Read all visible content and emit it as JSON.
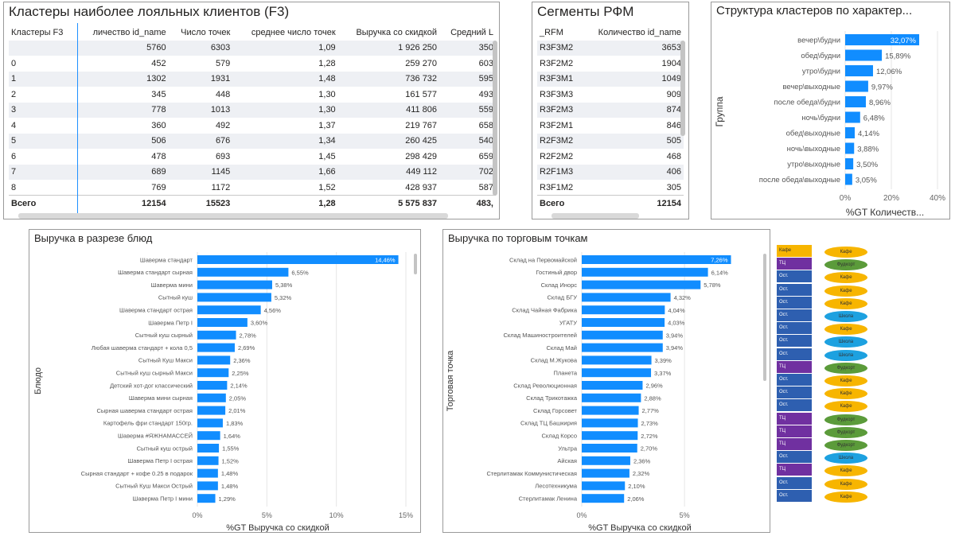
{
  "clusters_table": {
    "title": "Кластеры наиболее лояльных клиентов (F3)",
    "columns": [
      "Кластеры F3",
      "личество id_name",
      "Число точек",
      "среднее число точек",
      "Выручка со скидкой",
      "Средний L"
    ],
    "rows": [
      [
        "",
        "5760",
        "6303",
        "1,09",
        "1 926 250",
        "350"
      ],
      [
        "0",
        "452",
        "579",
        "1,28",
        "259 270",
        "603"
      ],
      [
        "1",
        "1302",
        "1931",
        "1,48",
        "736 732",
        "595"
      ],
      [
        "2",
        "345",
        "448",
        "1,30",
        "161 577",
        "493"
      ],
      [
        "3",
        "778",
        "1013",
        "1,30",
        "411 806",
        "559"
      ],
      [
        "4",
        "360",
        "492",
        "1,37",
        "219 767",
        "658"
      ],
      [
        "5",
        "506",
        "676",
        "1,34",
        "260 425",
        "540"
      ],
      [
        "6",
        "478",
        "693",
        "1,45",
        "298 429",
        "659"
      ],
      [
        "7",
        "689",
        "1145",
        "1,66",
        "449 112",
        "702"
      ],
      [
        "8",
        "769",
        "1172",
        "1,52",
        "428 937",
        "587"
      ]
    ],
    "total": [
      "Всего",
      "12154",
      "15523",
      "1,28",
      "5 575 837",
      "483,"
    ]
  },
  "rfm_table": {
    "title": "Сегменты РФМ",
    "columns": [
      "_RFM",
      "Количество id_name"
    ],
    "rows": [
      [
        "R3F3M2",
        "3653"
      ],
      [
        "R3F2M2",
        "1904"
      ],
      [
        "R3F3M1",
        "1049"
      ],
      [
        "R3F3M3",
        "909"
      ],
      [
        "R3F2M3",
        "874"
      ],
      [
        "R3F2M1",
        "846"
      ],
      [
        "R2F3M2",
        "505"
      ],
      [
        "R2F2M2",
        "468"
      ],
      [
        "R2F1M3",
        "406"
      ],
      [
        "R3F1M2",
        "305"
      ]
    ],
    "total": [
      "Всего",
      "12154"
    ]
  },
  "chart_data": [
    {
      "type": "bar",
      "title": "Структура кластеров по характер...",
      "ylabel": "Группа",
      "xlabel": "%GT Количеств...",
      "categories": [
        "вечер\\будни",
        "обед\\будни",
        "утро\\будни",
        "вечер\\выходные",
        "после обеда\\будни",
        "ночь\\будни",
        "обед\\выходные",
        "ночь\\выходные",
        "утро\\выходные",
        "после обеда\\выходные"
      ],
      "values": [
        32.07,
        15.89,
        12.06,
        9.97,
        8.96,
        6.48,
        4.14,
        3.88,
        3.5,
        3.05
      ],
      "labels": [
        "32,07%",
        "15,89%",
        "12,06%",
        "9,97%",
        "8,96%",
        "6,48%",
        "4,14%",
        "3,88%",
        "3,50%",
        "3,05%"
      ],
      "ticks": [
        "0%",
        "20%",
        "40%"
      ],
      "xlim": [
        0,
        40
      ]
    },
    {
      "type": "bar",
      "title": "Выручка в разрезе блюд",
      "ylabel": "Блюдо",
      "xlabel": "%GT Выручка со скидкой",
      "categories": [
        "Шаверма стандарт",
        "Шаверма стандарт сырная",
        "Шаверма мини",
        "Сытный куш",
        "Шаверма стандарт острая",
        "Шаверма Петр I",
        "Сытный куш сырный",
        "Любая шаверма стандарт + кола 0,5",
        "Сытный Куш Макси",
        "Сытный куш сырный Макси",
        "Детский хот-дог классический",
        "Шаверма мини сырная",
        "Сырная шаверма стандарт острая",
        "Картофель фри стандарт 150гр.",
        "Шаверма #ЯЖНАМАССЕЙ",
        "Сытный куш острый",
        "Шаверма Петр I острая",
        "Сырная стандарт + кофе 0.25 в подарок",
        "Сытный Куш Макси Острый",
        "Шаверма Петр I мини"
      ],
      "values": [
        14.46,
        6.55,
        5.38,
        5.32,
        4.56,
        3.6,
        2.78,
        2.69,
        2.36,
        2.25,
        2.14,
        2.05,
        2.01,
        1.83,
        1.64,
        1.55,
        1.52,
        1.48,
        1.48,
        1.29
      ],
      "labels": [
        "14,46%",
        "6,55%",
        "5,38%",
        "5,32%",
        "4,56%",
        "3,60%",
        "2,78%",
        "2,69%",
        "2,36%",
        "2,25%",
        "2,14%",
        "2,05%",
        "2,01%",
        "1,83%",
        "1,64%",
        "1,55%",
        "1,52%",
        "1,48%",
        "1,48%",
        "1,29%"
      ],
      "ticks": [
        "0%",
        "5%",
        "10%",
        "15%"
      ],
      "xlim": [
        0,
        15
      ]
    },
    {
      "type": "bar",
      "title": "Выручка по торговым точкам",
      "ylabel": "Торговая точка",
      "xlabel": "%GT Выручка со скидкой",
      "categories": [
        "Склад на Первомайской",
        "Гостиный двор",
        "Склад Инорс",
        "Склад БГУ",
        "Склад Чайная Фабрика",
        "УГАТУ",
        "Склад Машиностроителей",
        "Склад Май",
        "Склад М.Жукова",
        "Планета",
        "Склад Революционная",
        "Склад Трикотажка",
        "Склад Горсовет",
        "Склад ТЦ Башкирия",
        "Склад Корсо",
        "Ультра",
        "Айская",
        "Стерлитамак Коммунистическая",
        "Лесотехникума",
        "Стерлитамак Ленина"
      ],
      "values": [
        7.26,
        6.14,
        5.78,
        4.32,
        4.04,
        4.03,
        3.94,
        3.94,
        3.39,
        3.37,
        2.96,
        2.88,
        2.77,
        2.73,
        2.72,
        2.7,
        2.36,
        2.32,
        2.1,
        2.06
      ],
      "labels": [
        "7,26%",
        "6,14%",
        "5,78%",
        "4,32%",
        "4,04%",
        "4,03%",
        "3,94%",
        "3,94%",
        "3,39%",
        "3,37%",
        "2,96%",
        "2,88%",
        "2,77%",
        "2,73%",
        "2,72%",
        "2,70%",
        "2,36%",
        "2,32%",
        "2,10%",
        "2,06%"
      ],
      "ticks": [
        "0%",
        "5%"
      ],
      "xlim": [
        0,
        8.75
      ]
    }
  ],
  "side_legend": {
    "squares": [
      {
        "label": "Кафе",
        "color": "#f7b500"
      },
      {
        "label": "ТЦ",
        "color": "#7030a0"
      },
      {
        "label": "Ост.",
        "color": "#2e5fb0"
      },
      {
        "label": "Ост.",
        "color": "#2e5fb0"
      },
      {
        "label": "Ост.",
        "color": "#2e5fb0"
      },
      {
        "label": "Ост.",
        "color": "#2e5fb0"
      },
      {
        "label": "Ост.",
        "color": "#2e5fb0"
      },
      {
        "label": "Ост.",
        "color": "#2e5fb0"
      },
      {
        "label": "Ост.",
        "color": "#2e5fb0"
      },
      {
        "label": "ТЦ",
        "color": "#7030a0"
      },
      {
        "label": "Ост.",
        "color": "#2e5fb0"
      },
      {
        "label": "Ост.",
        "color": "#2e5fb0"
      },
      {
        "label": "Ост.",
        "color": "#2e5fb0"
      },
      {
        "label": "ТЦ",
        "color": "#7030a0"
      },
      {
        "label": "ТЦ",
        "color": "#7030a0"
      },
      {
        "label": "ТЦ",
        "color": "#7030a0"
      },
      {
        "label": "Ост.",
        "color": "#2e5fb0"
      },
      {
        "label": "ТЦ",
        "color": "#7030a0"
      },
      {
        "label": "Ост.",
        "color": "#2e5fb0"
      },
      {
        "label": "Ост.",
        "color": "#2e5fb0"
      }
    ],
    "ovals": [
      {
        "label": "Кафе",
        "color": "#f7b500"
      },
      {
        "label": "Фудкорт",
        "color": "#5b9b3a"
      },
      {
        "label": "Кафе",
        "color": "#f7b500"
      },
      {
        "label": "Кафе",
        "color": "#f7b500"
      },
      {
        "label": "Кафе",
        "color": "#f7b500"
      },
      {
        "label": "Школа",
        "color": "#1da1e0"
      },
      {
        "label": "Кафе",
        "color": "#f7b500"
      },
      {
        "label": "Школа",
        "color": "#1da1e0"
      },
      {
        "label": "Школа",
        "color": "#1da1e0"
      },
      {
        "label": "Фудкорт",
        "color": "#5b9b3a"
      },
      {
        "label": "Кафе",
        "color": "#f7b500"
      },
      {
        "label": "Кафе",
        "color": "#f7b500"
      },
      {
        "label": "Кафе",
        "color": "#f7b500"
      },
      {
        "label": "Фудкорт",
        "color": "#5b9b3a"
      },
      {
        "label": "Фудкорт",
        "color": "#5b9b3a"
      },
      {
        "label": "Фудкорт",
        "color": "#5b9b3a"
      },
      {
        "label": "Школа",
        "color": "#1da1e0"
      },
      {
        "label": "Кафе",
        "color": "#f7b500"
      },
      {
        "label": "Кафе",
        "color": "#f7b500"
      },
      {
        "label": "Кафе",
        "color": "#f7b500"
      }
    ]
  },
  "colors": {
    "bar": "#118dff",
    "highlight_bar_label": "#ffffff"
  }
}
